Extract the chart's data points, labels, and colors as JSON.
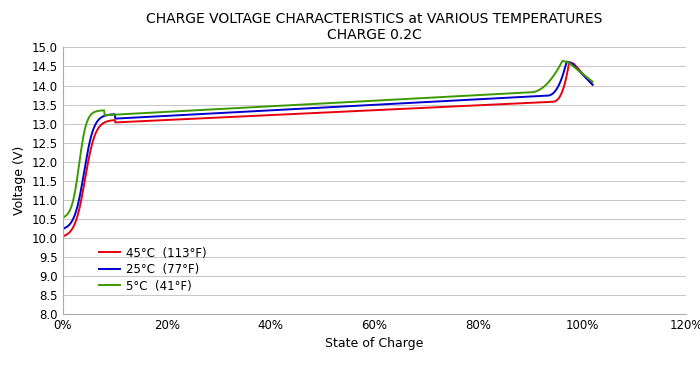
{
  "title_line1": "CHARGE VOLTAGE CHARACTERISTICS at VARIOUS TEMPERATURES",
  "title_line2": "CHARGE 0.2C",
  "xlabel": "State of Charge",
  "ylabel": "Voltage (V)",
  "xlim": [
    0.0,
    1.2
  ],
  "ylim": [
    8.0,
    15.0
  ],
  "yticks": [
    8.0,
    8.5,
    9.0,
    9.5,
    10.0,
    10.5,
    11.0,
    11.5,
    12.0,
    12.5,
    13.0,
    13.5,
    14.0,
    14.5,
    15.0
  ],
  "xticks": [
    0.0,
    0.2,
    0.4,
    0.6,
    0.8,
    1.0,
    1.2
  ],
  "legend": [
    {
      "label": "45°C  (113°F)",
      "color": "#e8000d"
    },
    {
      "label": "25°C  (77°F)",
      "color": "#0000cd"
    },
    {
      "label": "5°C  (41°F)",
      "color": "#3c9a00"
    }
  ],
  "background_color": "#ffffff",
  "grid_color": "#c8c8c8",
  "title_fontsize": 10,
  "axis_label_fontsize": 9,
  "tick_fontsize": 8.5,
  "legend_fontsize": 8.5
}
